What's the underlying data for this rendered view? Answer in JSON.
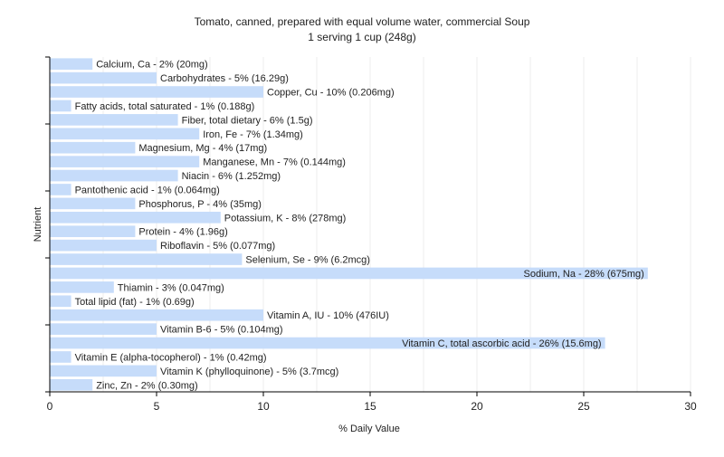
{
  "chart_data": {
    "type": "bar",
    "orientation": "horizontal",
    "title": "Tomato, canned, prepared with equal volume water, commercial Soup",
    "subtitle": "1 serving 1 cup (248g)",
    "xlabel": "% Daily Value",
    "ylabel": "Nutrient",
    "xlim": [
      0,
      30
    ],
    "xticks": [
      "0",
      "5",
      "10",
      "15",
      "20",
      "25",
      "30"
    ],
    "grid": true,
    "bar_color": "#c6dcfa",
    "categories": [
      "Calcium, Ca",
      "Carbohydrates",
      "Copper, Cu",
      "Fatty acids, total saturated",
      "Fiber, total dietary",
      "Iron, Fe",
      "Magnesium, Mg",
      "Manganese, Mn",
      "Niacin",
      "Pantothenic acid",
      "Phosphorus, P",
      "Potassium, K",
      "Protein",
      "Riboflavin",
      "Selenium, Se",
      "Sodium, Na",
      "Thiamin",
      "Total lipid (fat)",
      "Vitamin A, IU",
      "Vitamin B-6",
      "Vitamin C, total ascorbic acid",
      "Vitamin E (alpha-tocopherol)",
      "Vitamin K (phylloquinone)",
      "Zinc, Zn"
    ],
    "values": [
      2,
      5,
      10,
      1,
      6,
      7,
      4,
      7,
      6,
      1,
      4,
      8,
      4,
      5,
      9,
      28,
      3,
      1,
      10,
      5,
      26,
      1,
      5,
      2
    ],
    "labels": [
      "Calcium, Ca - 2% (20mg)",
      "Carbohydrates - 5% (16.29g)",
      "Copper, Cu - 10% (0.206mg)",
      "Fatty acids, total saturated - 1% (0.188g)",
      "Fiber, total dietary - 6% (1.5g)",
      "Iron, Fe - 7% (1.34mg)",
      "Magnesium, Mg - 4% (17mg)",
      "Manganese, Mn - 7% (0.144mg)",
      "Niacin - 6% (1.252mg)",
      "Pantothenic acid - 1% (0.064mg)",
      "Phosphorus, P - 4% (35mg)",
      "Potassium, K - 8% (278mg)",
      "Protein - 4% (1.96g)",
      "Riboflavin - 5% (0.077mg)",
      "Selenium, Se - 9% (6.2mcg)",
      "Sodium, Na - 28% (675mg)",
      "Thiamin - 3% (0.047mg)",
      "Total lipid (fat) - 1% (0.69g)",
      "Vitamin A, IU - 10% (476IU)",
      "Vitamin B-6 - 5% (0.104mg)",
      "Vitamin C, total ascorbic acid - 26% (15.6mg)",
      "Vitamin E (alpha-tocopherol) - 1% (0.42mg)",
      "Vitamin K (phylloquinone) - 5% (3.7mcg)",
      "Zinc, Zn - 2% (0.30mg)"
    ]
  }
}
